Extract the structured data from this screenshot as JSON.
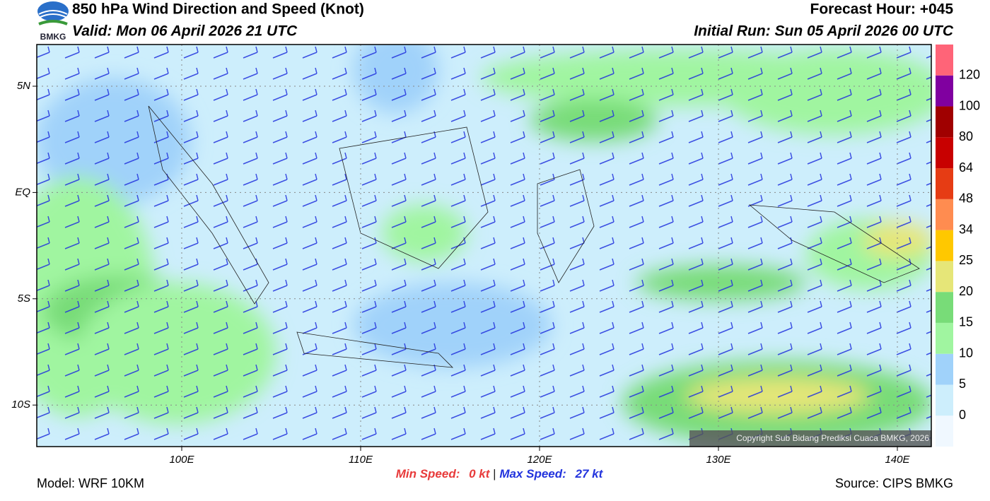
{
  "header": {
    "title": "850 hPa Wind Direction and Speed (Knot)",
    "valid": "Valid: Mon 06 April 2026 21 UTC",
    "forecast_hour": "Forecast Hour: +045",
    "initial_run": "Initial Run: Sun 05 April 2026 00 UTC",
    "logo_text": "BMKG"
  },
  "map": {
    "lat_labels": [
      "5N",
      "EQ",
      "5S",
      "10S"
    ],
    "lon_labels": [
      "100E",
      "110E",
      "120E",
      "130E",
      "140E"
    ],
    "copyright": "Copyright Sub Bidang Prediksi Cuaca BMKG, 2026"
  },
  "colorbar": {
    "levels": [
      0,
      5,
      10,
      15,
      20,
      25,
      34,
      48,
      64,
      80,
      100,
      120
    ],
    "colors": [
      "#f0f8ff",
      "#cdeefc",
      "#a0d2fa",
      "#a0f5a0",
      "#78dc78",
      "#e6e678",
      "#ffc800",
      "#ff8c50",
      "#e63c14",
      "#c80000",
      "#a00000",
      "#8000a0",
      "#ff6478"
    ]
  },
  "footer": {
    "min_speed_label": "Min Speed:",
    "min_speed": "0 kt",
    "separator": "|",
    "max_speed_label": "Max Speed:",
    "max_speed": "27 kt",
    "model": "Model: WRF 10KM",
    "source": "Source: CIPS BMKG"
  }
}
